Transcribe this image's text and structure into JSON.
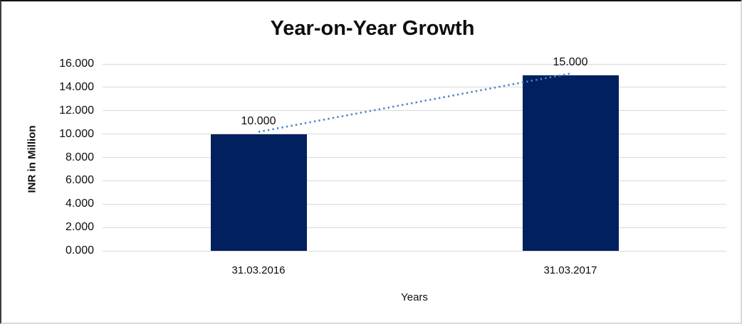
{
  "chart_data": {
    "type": "bar",
    "title": "Year-on-Year Growth",
    "xlabel": "Years",
    "ylabel": "INR in Million",
    "categories": [
      "31.03.2016",
      "31.03.2017"
    ],
    "values": [
      10.0,
      15.0
    ],
    "value_labels": [
      "10.000",
      "15.000"
    ],
    "ylim": [
      0,
      16
    ],
    "y_tick_values": [
      16,
      14,
      12,
      10,
      8,
      6,
      4,
      2,
      0
    ],
    "y_tick_labels": [
      "16.000",
      "14.000",
      "12.000",
      "10.000",
      "8.000",
      "6.000",
      "4.000",
      "2.000",
      "0.000"
    ],
    "grid": "horizontal",
    "legend_position": "none",
    "trendline": {
      "style": "dotted",
      "connects": [
        10.0,
        15.0
      ]
    },
    "colors": {
      "bar": "#002060",
      "trendline": "#4a86c8",
      "gridline": "#d9d9d9",
      "text": "#0d0d0d",
      "background": "#ffffff"
    }
  }
}
